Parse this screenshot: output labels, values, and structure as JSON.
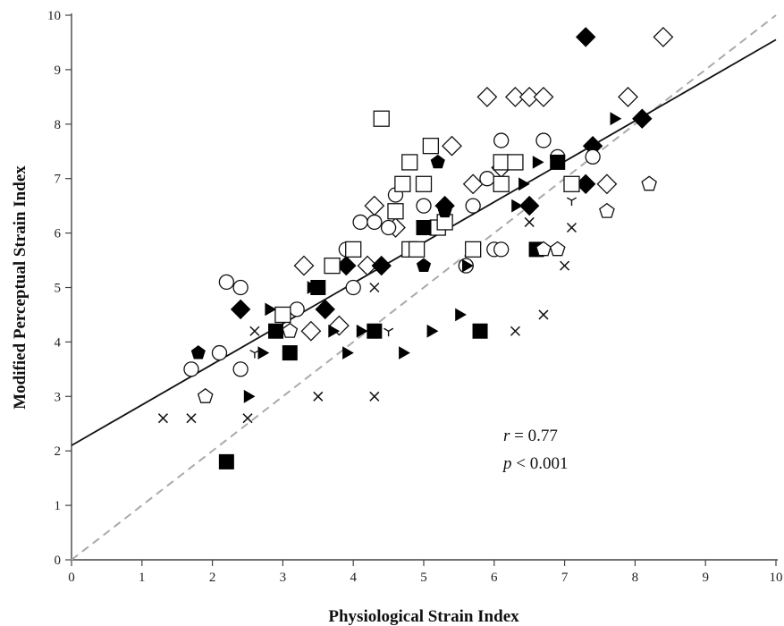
{
  "chart_data": {
    "type": "scatter",
    "xlabel": "Physiological Strain Index",
    "ylabel": "Modified Perceptual Strain Index",
    "xlim": [
      0,
      10
    ],
    "ylim": [
      0,
      10
    ],
    "x_ticks": [
      "0",
      "1",
      "2",
      "3",
      "4",
      "5",
      "6",
      "7",
      "8",
      "9",
      "10"
    ],
    "y_ticks": [
      "0",
      "1",
      "2",
      "3",
      "4",
      "5",
      "6",
      "7",
      "8",
      "9",
      "10"
    ],
    "grid": false,
    "annotation": {
      "r_symbol": "r",
      "r_text": " = 0.77",
      "p_symbol": "p",
      "p_text": " < 0.001"
    },
    "regression_line": {
      "intercept": 2.1,
      "slope": 0.745,
      "style": "solid",
      "color": "#111111"
    },
    "identity_line": {
      "from": [
        0,
        0
      ],
      "to": [
        10,
        10
      ],
      "style": "dashed",
      "color": "#aaaaaa"
    },
    "series": [
      {
        "marker": "open-diamond",
        "points": [
          [
            5.9,
            8.5
          ],
          [
            6.3,
            8.5
          ],
          [
            6.5,
            8.5
          ],
          [
            6.7,
            8.5
          ],
          [
            8.4,
            9.6
          ],
          [
            7.9,
            8.5
          ],
          [
            4.3,
            6.5
          ],
          [
            3.3,
            5.4
          ],
          [
            4.2,
            5.4
          ],
          [
            3.8,
            4.3
          ],
          [
            3.4,
            4.2
          ],
          [
            5.7,
            6.9
          ],
          [
            6.1,
            7.2
          ],
          [
            7.6,
            6.9
          ],
          [
            4.6,
            6.1
          ],
          [
            5.4,
            7.6
          ]
        ]
      },
      {
        "marker": "filled-diamond",
        "points": [
          [
            7.3,
            9.6
          ],
          [
            7.4,
            7.6
          ],
          [
            8.1,
            8.1
          ],
          [
            7.3,
            6.9
          ],
          [
            2.4,
            4.6
          ],
          [
            3.6,
            4.6
          ],
          [
            3.9,
            5.4
          ],
          [
            4.4,
            5.4
          ],
          [
            5.3,
            6.5
          ],
          [
            6.5,
            6.5
          ]
        ]
      },
      {
        "marker": "open-circle",
        "points": [
          [
            2.2,
            5.1
          ],
          [
            2.4,
            5.0
          ],
          [
            1.7,
            3.5
          ],
          [
            2.1,
            3.8
          ],
          [
            2.4,
            3.5
          ],
          [
            3.2,
            4.6
          ],
          [
            4.0,
            5.0
          ],
          [
            3.9,
            5.7
          ],
          [
            4.1,
            6.2
          ],
          [
            4.3,
            6.2
          ],
          [
            4.5,
            6.1
          ],
          [
            4.6,
            6.7
          ],
          [
            5.0,
            6.5
          ],
          [
            5.7,
            6.5
          ],
          [
            5.9,
            7.0
          ],
          [
            6.1,
            7.7
          ],
          [
            6.3,
            7.3
          ],
          [
            6.7,
            7.7
          ],
          [
            6.9,
            7.4
          ],
          [
            7.4,
            7.4
          ],
          [
            6.0,
            5.7
          ],
          [
            6.1,
            5.7
          ],
          [
            5.6,
            5.4
          ]
        ]
      },
      {
        "marker": "open-square",
        "points": [
          [
            4.4,
            8.1
          ],
          [
            5.1,
            7.6
          ],
          [
            4.8,
            7.3
          ],
          [
            4.7,
            6.9
          ],
          [
            5.0,
            6.9
          ],
          [
            4.6,
            6.4
          ],
          [
            5.2,
            6.1
          ],
          [
            5.3,
            6.2
          ],
          [
            4.8,
            5.7
          ],
          [
            4.9,
            5.7
          ],
          [
            5.7,
            5.7
          ],
          [
            4.0,
            5.7
          ],
          [
            3.7,
            5.4
          ],
          [
            3.0,
            4.5
          ],
          [
            6.1,
            7.3
          ],
          [
            6.3,
            7.3
          ],
          [
            6.1,
            6.9
          ],
          [
            7.1,
            6.9
          ]
        ]
      },
      {
        "marker": "filled-square",
        "points": [
          [
            3.5,
            5.0
          ],
          [
            3.1,
            3.8
          ],
          [
            2.2,
            1.8
          ],
          [
            4.3,
            4.2
          ],
          [
            5.8,
            4.2
          ],
          [
            6.9,
            7.3
          ],
          [
            5.0,
            6.1
          ],
          [
            6.6,
            5.7
          ],
          [
            2.9,
            4.2
          ]
        ]
      },
      {
        "marker": "filled-triangle",
        "points": [
          [
            7.7,
            8.1
          ],
          [
            6.9,
            7.3
          ],
          [
            6.6,
            7.3
          ],
          [
            6.4,
            6.9
          ],
          [
            5.5,
            4.5
          ],
          [
            5.1,
            4.2
          ],
          [
            4.7,
            3.8
          ],
          [
            3.9,
            3.8
          ],
          [
            4.1,
            4.2
          ],
          [
            3.7,
            4.2
          ],
          [
            2.8,
            4.6
          ],
          [
            2.7,
            3.8
          ],
          [
            3.4,
            5.0
          ],
          [
            5.6,
            5.4
          ],
          [
            6.3,
            6.5
          ],
          [
            2.5,
            3.0
          ]
        ]
      },
      {
        "marker": "x",
        "points": [
          [
            1.3,
            2.6
          ],
          [
            1.7,
            2.6
          ],
          [
            2.5,
            2.6
          ],
          [
            2.6,
            4.2
          ],
          [
            3.5,
            3.0
          ],
          [
            4.3,
            3.0
          ],
          [
            4.3,
            5.0
          ],
          [
            6.7,
            4.5
          ],
          [
            6.3,
            4.2
          ],
          [
            7.0,
            5.4
          ],
          [
            7.1,
            6.1
          ],
          [
            6.5,
            6.2
          ]
        ]
      },
      {
        "marker": "open-pentagon",
        "points": [
          [
            8.2,
            6.9
          ],
          [
            7.6,
            6.4
          ],
          [
            6.9,
            5.7
          ],
          [
            6.7,
            5.7
          ],
          [
            3.1,
            4.2
          ],
          [
            1.9,
            3.0
          ]
        ]
      },
      {
        "marker": "filled-pentagon",
        "points": [
          [
            1.8,
            3.8
          ],
          [
            5.2,
            7.3
          ],
          [
            5.0,
            5.4
          ],
          [
            5.3,
            6.4
          ]
        ]
      },
      {
        "marker": "tri-down",
        "points": [
          [
            7.1,
            6.6
          ],
          [
            4.5,
            4.2
          ],
          [
            2.6,
            3.8
          ]
        ]
      }
    ]
  }
}
